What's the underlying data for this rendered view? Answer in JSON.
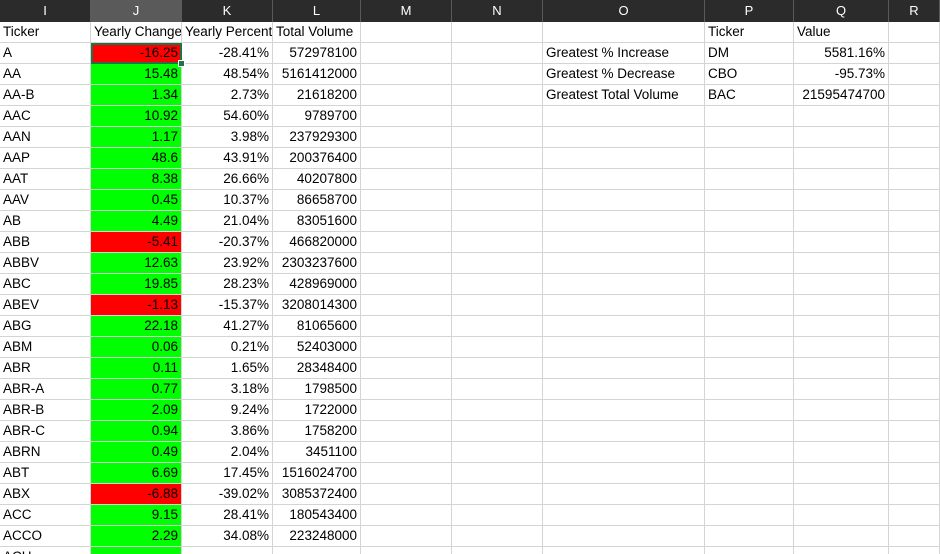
{
  "column_headers": [
    "I",
    "J",
    "K",
    "L",
    "M",
    "N",
    "O",
    "P",
    "Q",
    "R"
  ],
  "selected_column": "J",
  "colors": {
    "positive": "#00ff00",
    "negative": "#ff0000",
    "header_bg": "#2b2b2b"
  },
  "table_headers": {
    "ticker": "Ticker",
    "yearly_change": "Yearly Change",
    "yearly_percent": "Yearly Percent",
    "total_volume": "Total Volume"
  },
  "rows": [
    {
      "ticker": "A",
      "change": "-16.25",
      "pct": "-28.41%",
      "volume": "572978100",
      "neg": true
    },
    {
      "ticker": "AA",
      "change": "15.48",
      "pct": "48.54%",
      "volume": "5161412000",
      "neg": false
    },
    {
      "ticker": "AA-B",
      "change": "1.34",
      "pct": "2.73%",
      "volume": "21618200",
      "neg": false
    },
    {
      "ticker": "AAC",
      "change": "10.92",
      "pct": "54.60%",
      "volume": "9789700",
      "neg": false
    },
    {
      "ticker": "AAN",
      "change": "1.17",
      "pct": "3.98%",
      "volume": "237929300",
      "neg": false
    },
    {
      "ticker": "AAP",
      "change": "48.6",
      "pct": "43.91%",
      "volume": "200376400",
      "neg": false
    },
    {
      "ticker": "AAT",
      "change": "8.38",
      "pct": "26.66%",
      "volume": "40207800",
      "neg": false
    },
    {
      "ticker": "AAV",
      "change": "0.45",
      "pct": "10.37%",
      "volume": "86658700",
      "neg": false
    },
    {
      "ticker": "AB",
      "change": "4.49",
      "pct": "21.04%",
      "volume": "83051600",
      "neg": false
    },
    {
      "ticker": "ABB",
      "change": "-5.41",
      "pct": "-20.37%",
      "volume": "466820000",
      "neg": true
    },
    {
      "ticker": "ABBV",
      "change": "12.63",
      "pct": "23.92%",
      "volume": "2303237600",
      "neg": false
    },
    {
      "ticker": "ABC",
      "change": "19.85",
      "pct": "28.23%",
      "volume": "428969000",
      "neg": false
    },
    {
      "ticker": "ABEV",
      "change": "-1.13",
      "pct": "-15.37%",
      "volume": "3208014300",
      "neg": true
    },
    {
      "ticker": "ABG",
      "change": "22.18",
      "pct": "41.27%",
      "volume": "81065600",
      "neg": false
    },
    {
      "ticker": "ABM",
      "change": "0.06",
      "pct": "0.21%",
      "volume": "52403000",
      "neg": false
    },
    {
      "ticker": "ABR",
      "change": "0.11",
      "pct": "1.65%",
      "volume": "28348400",
      "neg": false
    },
    {
      "ticker": "ABR-A",
      "change": "0.77",
      "pct": "3.18%",
      "volume": "1798500",
      "neg": false
    },
    {
      "ticker": "ABR-B",
      "change": "2.09",
      "pct": "9.24%",
      "volume": "1722000",
      "neg": false
    },
    {
      "ticker": "ABR-C",
      "change": "0.94",
      "pct": "3.86%",
      "volume": "1758200",
      "neg": false
    },
    {
      "ticker": "ABRN",
      "change": "0.49",
      "pct": "2.04%",
      "volume": "3451100",
      "neg": false
    },
    {
      "ticker": "ABT",
      "change": "6.69",
      "pct": "17.45%",
      "volume": "1516024700",
      "neg": false
    },
    {
      "ticker": "ABX",
      "change": "-6.88",
      "pct": "-39.02%",
      "volume": "3085372400",
      "neg": true
    },
    {
      "ticker": "ACC",
      "change": "9.15",
      "pct": "28.41%",
      "volume": "180543400",
      "neg": false
    },
    {
      "ticker": "ACCO",
      "change": "2.29",
      "pct": "34.08%",
      "volume": "223248000",
      "neg": false
    },
    {
      "ticker": "ACH",
      "change": "",
      "pct": "",
      "volume": "",
      "neg": false
    }
  ],
  "summary": {
    "ticker_header": "Ticker",
    "value_header": "Value",
    "items": [
      {
        "label": "Greatest % Increase",
        "ticker": "DM",
        "value": "5581.16%"
      },
      {
        "label": "Greatest % Decrease",
        "ticker": "CBO",
        "value": "-95.73%"
      },
      {
        "label": "Greatest Total Volume",
        "ticker": "BAC",
        "value": "21595474700"
      }
    ]
  }
}
